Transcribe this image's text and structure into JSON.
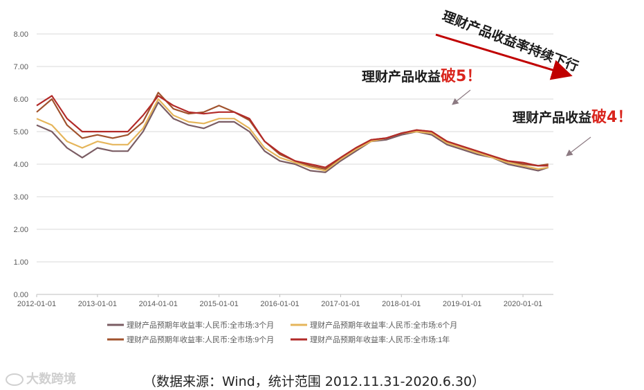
{
  "chart_data": {
    "type": "line",
    "ylim": [
      0,
      8
    ],
    "y_ticks": [
      "0.00",
      "1.00",
      "2.00",
      "3.00",
      "4.00",
      "5.00",
      "6.00",
      "7.00",
      "8.00"
    ],
    "x_ticks": [
      "2012-01-01",
      "2013-01-01",
      "2014-01-01",
      "2015-01-01",
      "2016-01-01",
      "2017-01-01",
      "2018-01-01",
      "2019-01-01",
      "2020-01-01"
    ],
    "grid": "horizontal",
    "legend_position": "bottom",
    "x": [
      "2012-01",
      "2012-04",
      "2012-07",
      "2012-10",
      "2013-01",
      "2013-04",
      "2013-07",
      "2013-10",
      "2014-01",
      "2014-04",
      "2014-07",
      "2014-10",
      "2015-01",
      "2015-04",
      "2015-07",
      "2015-10",
      "2016-01",
      "2016-04",
      "2016-07",
      "2016-10",
      "2017-01",
      "2017-04",
      "2017-07",
      "2017-10",
      "2018-01",
      "2018-04",
      "2018-07",
      "2018-10",
      "2019-01",
      "2019-04",
      "2019-07",
      "2019-10",
      "2020-01",
      "2020-04",
      "2020-06"
    ],
    "series": [
      {
        "name": "理财产品预期年收益率:人民币:全市场:3个月",
        "color": "#7a5c63",
        "values": [
          5.2,
          5.0,
          4.5,
          4.2,
          4.5,
          4.4,
          4.4,
          5.0,
          5.9,
          5.4,
          5.2,
          5.1,
          5.3,
          5.3,
          5.0,
          4.4,
          4.1,
          4.0,
          3.8,
          3.75,
          4.1,
          4.4,
          4.7,
          4.75,
          4.9,
          5.0,
          4.9,
          4.6,
          4.45,
          4.3,
          4.2,
          4.0,
          3.9,
          3.8,
          3.9
        ]
      },
      {
        "name": "理财产品预期年收益率:人民币:全市场:6个月",
        "color": "#e5b55a",
        "values": [
          5.4,
          5.2,
          4.7,
          4.5,
          4.7,
          4.6,
          4.6,
          5.1,
          6.0,
          5.5,
          5.3,
          5.25,
          5.4,
          5.4,
          5.1,
          4.5,
          4.2,
          4.05,
          3.9,
          3.8,
          4.15,
          4.45,
          4.7,
          4.8,
          4.95,
          5.0,
          4.95,
          4.65,
          4.5,
          4.35,
          4.2,
          4.05,
          3.95,
          3.85,
          3.9
        ]
      },
      {
        "name": "理财产品预期年收益率:人民币:全市场:9个月",
        "color": "#a0522d",
        "values": [
          5.6,
          6.0,
          5.2,
          4.8,
          4.9,
          4.8,
          4.9,
          5.3,
          6.2,
          5.7,
          5.55,
          5.6,
          5.8,
          5.6,
          5.35,
          4.7,
          4.3,
          4.1,
          3.95,
          3.85,
          4.2,
          4.5,
          4.75,
          4.8,
          4.95,
          5.05,
          5.0,
          4.7,
          4.55,
          4.4,
          4.25,
          4.1,
          4.0,
          3.95,
          4.0
        ]
      },
      {
        "name": "理财产品预期年收益率:人民币:全市场:1年",
        "color": "#b22a28",
        "values": [
          5.8,
          6.1,
          5.4,
          5.0,
          5.0,
          5.0,
          5.0,
          5.5,
          6.1,
          5.8,
          5.6,
          5.55,
          5.6,
          5.6,
          5.4,
          4.7,
          4.35,
          4.1,
          4.0,
          3.9,
          4.2,
          4.5,
          4.75,
          4.8,
          4.95,
          5.05,
          5.0,
          4.7,
          4.55,
          4.4,
          4.25,
          4.1,
          4.05,
          3.95,
          3.95
        ]
      }
    ]
  },
  "annotations": {
    "trend": "理财产品收益率持续下行",
    "break5_text": "理财产品收益",
    "break5_hl": "破5！",
    "break4_text": "理财产品收益",
    "break4_hl": "破4！"
  },
  "source_note": "（数据来源：Wind，统计范围 2012.11.31-2020.6.30）",
  "watermark": "大数跨境",
  "colors": {
    "accent": "#c00000",
    "grid": "#d9d9d9"
  }
}
